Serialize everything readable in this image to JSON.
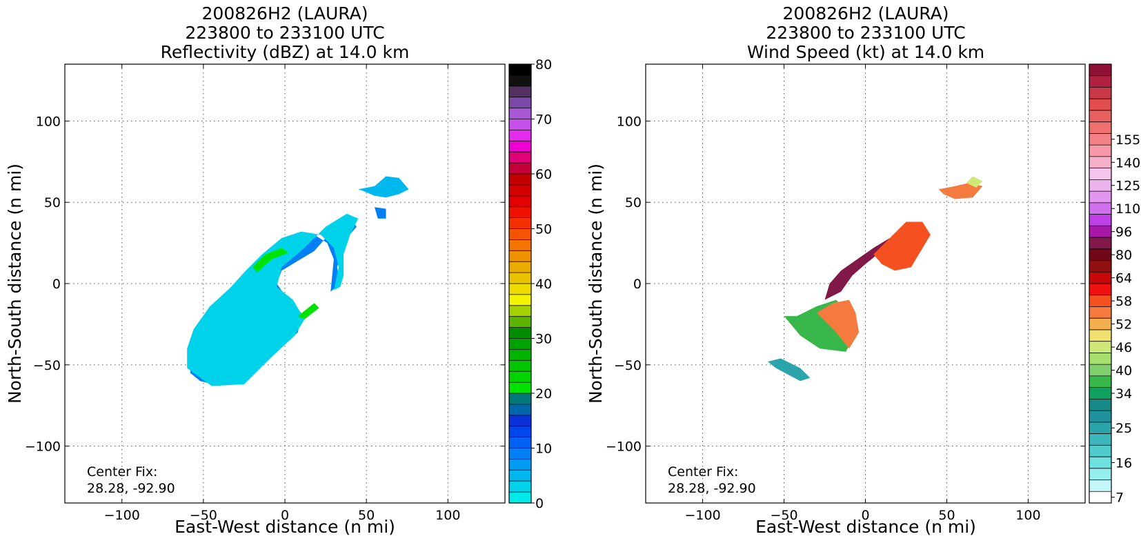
{
  "left_panel": {
    "title_line1": "200826H2 (LAURA)",
    "title_line2": "223800 to 233100 UTC",
    "title_line3": "Reflectivity (dBZ) at 14.0 km",
    "xlabel": "East-West distance (n mi)",
    "ylabel": "North-South distance (n mi)",
    "center_fix_label": "Center Fix:",
    "center_fix_value": "28.28, -92.90"
  },
  "right_panel": {
    "title_line1": "200826H2 (LAURA)",
    "title_line2": "223800 to 233100 UTC",
    "title_line3": "Wind Speed (kt) at 14.0 km",
    "xlabel": "East-West distance (n mi)",
    "ylabel": "North-South distance (n mi)",
    "center_fix_label": "Center Fix:",
    "center_fix_value": "28.28, -92.90"
  },
  "chart_data": [
    {
      "type": "heatmap",
      "title": "200826H2 (LAURA) 223800 to 233100 UTC Reflectivity (dBZ) at 14.0 km",
      "xlabel": "East-West distance (n mi)",
      "ylabel": "North-South distance (n mi)",
      "xlim": [
        -135,
        135
      ],
      "ylim": [
        -135,
        135
      ],
      "xticks": [
        -100,
        -50,
        0,
        50,
        100
      ],
      "yticks": [
        -100,
        -50,
        0,
        50,
        100
      ],
      "xtick_labels": [
        "−100",
        "−50",
        "0",
        "50",
        "100"
      ],
      "ytick_labels": [
        "−100",
        "−50",
        "0",
        "50",
        "100"
      ],
      "grid": true,
      "colorbar": {
        "min": 0,
        "max": 80,
        "tick_values": [
          0,
          10,
          20,
          30,
          40,
          50,
          60,
          70,
          80
        ],
        "tick_labels": [
          "0",
          "10",
          "20",
          "30",
          "40",
          "50",
          "60",
          "70",
          "80"
        ],
        "colors": [
          "#00eaea",
          "#00d2ea",
          "#00b8ee",
          "#009cf2",
          "#0080f4",
          "#0062f4",
          "#0046ee",
          "#0a30d8",
          "#0066aa",
          "#007a78",
          "#00e200",
          "#00d400",
          "#00c400",
          "#00b400",
          "#00a200",
          "#008e00",
          "#5cb400",
          "#a4d200",
          "#f4f400",
          "#eedc00",
          "#e8c400",
          "#eaac00",
          "#f09200",
          "#f47400",
          "#f45400",
          "#f43000",
          "#f01000",
          "#e40000",
          "#d40000",
          "#c40000",
          "#c4003a",
          "#e00078",
          "#ee00d0",
          "#e42cee",
          "#c850ea",
          "#a858d4",
          "#7c48a8",
          "#533262",
          "#101010",
          "#000000"
        ]
      },
      "regions": [
        {
          "name": "main-band",
          "value": 8,
          "points": [
            [
              -58,
              -55
            ],
            [
              -52,
              -60
            ],
            [
              -40,
              -63
            ],
            [
              -28,
              -58
            ],
            [
              -15,
              -48
            ],
            [
              -2,
              -38
            ],
            [
              8,
              -30
            ],
            [
              10,
              -18
            ],
            [
              2,
              -10
            ],
            [
              -5,
              0
            ],
            [
              -2,
              8
            ],
            [
              8,
              14
            ],
            [
              18,
              20
            ],
            [
              25,
              28
            ],
            [
              30,
              36
            ],
            [
              40,
              40
            ],
            [
              44,
              35
            ],
            [
              38,
              28
            ],
            [
              35,
              20
            ],
            [
              32,
              10
            ],
            [
              34,
              0
            ],
            [
              28,
              -5
            ],
            [
              30,
              15
            ],
            [
              26,
              25
            ],
            [
              18,
              30
            ],
            [
              8,
              28
            ],
            [
              -4,
              22
            ],
            [
              -14,
              14
            ],
            [
              -20,
              5
            ],
            [
              -28,
              -2
            ],
            [
              -38,
              -10
            ],
            [
              -48,
              -20
            ],
            [
              -55,
              -30
            ],
            [
              -58,
              -40
            ]
          ]
        },
        {
          "name": "outer-band",
          "value": 3,
          "points": [
            [
              -60,
              -52
            ],
            [
              -45,
              -63
            ],
            [
              -25,
              -62
            ],
            [
              -8,
              -45
            ],
            [
              6,
              -32
            ],
            [
              12,
              -22
            ],
            [
              5,
              -10
            ],
            [
              -5,
              -2
            ],
            [
              -2,
              10
            ],
            [
              12,
              22
            ],
            [
              25,
              35
            ],
            [
              38,
              43
            ],
            [
              45,
              40
            ],
            [
              40,
              30
            ],
            [
              36,
              18
            ],
            [
              36,
              5
            ],
            [
              34,
              -2
            ],
            [
              30,
              -4
            ],
            [
              33,
              10
            ],
            [
              30,
              22
            ],
            [
              22,
              30
            ],
            [
              10,
              32
            ],
            [
              -2,
              28
            ],
            [
              -14,
              18
            ],
            [
              -24,
              8
            ],
            [
              -34,
              -3
            ],
            [
              -46,
              -14
            ],
            [
              -56,
              -28
            ],
            [
              -60,
              -40
            ]
          ]
        },
        {
          "name": "ne-cell",
          "value": 4,
          "points": [
            [
              45,
              58
            ],
            [
              55,
              60
            ],
            [
              62,
              66
            ],
            [
              70,
              65
            ],
            [
              76,
              58
            ],
            [
              70,
              55
            ],
            [
              62,
              53
            ],
            [
              55,
              54
            ],
            [
              48,
              57
            ]
          ]
        },
        {
          "name": "ne-spot",
          "value": 8,
          "points": [
            [
              55,
              47
            ],
            [
              62,
              46
            ],
            [
              62,
              40
            ],
            [
              57,
              40
            ]
          ]
        },
        {
          "name": "green-streak",
          "value": 20,
          "points": [
            [
              -20,
              10
            ],
            [
              -12,
              18
            ],
            [
              -2,
              22
            ],
            [
              2,
              19
            ],
            [
              -8,
              15
            ],
            [
              -17,
              7
            ]
          ]
        },
        {
          "name": "green-spot",
          "value": 20,
          "points": [
            [
              8,
              -20
            ],
            [
              18,
              -12
            ],
            [
              21,
              -15
            ],
            [
              12,
              -22
            ]
          ]
        }
      ]
    },
    {
      "type": "heatmap",
      "title": "200826H2 (LAURA) 223800 to 233100 UTC Wind Speed (kt) at 14.0 km",
      "xlabel": "East-West distance (n mi)",
      "ylabel": "North-South distance (n mi)",
      "xlim": [
        -135,
        135
      ],
      "ylim": [
        -135,
        135
      ],
      "xticks": [
        -100,
        -50,
        0,
        50,
        100
      ],
      "yticks": [
        -100,
        -50,
        0,
        50,
        100
      ],
      "xtick_labels": [
        "−100",
        "−50",
        "0",
        "50",
        "100"
      ],
      "ytick_labels": [
        "−100",
        "−50",
        "0",
        "50",
        "100"
      ],
      "grid": true,
      "colorbar": {
        "tick_labels": [
          "7",
          "16",
          "25",
          "34",
          "40",
          "46",
          "52",
          "58",
          "64",
          "80",
          "96",
          "110",
          "125",
          "140",
          "155"
        ],
        "tick_index": [
          0,
          3,
          6,
          9,
          11,
          13,
          15,
          17,
          19,
          21,
          23,
          25,
          27,
          29,
          31
        ],
        "colors": [
          "#ffffff",
          "#c4f8f8",
          "#96eeee",
          "#6ee0e0",
          "#50cccc",
          "#3cb8bc",
          "#2ca4ac",
          "#20929e",
          "#168a86",
          "#10a060",
          "#38b84a",
          "#80d070",
          "#a8e070",
          "#d0e878",
          "#f0e070",
          "#f4b050",
          "#f47a40",
          "#f45020",
          "#f01010",
          "#c80808",
          "#901010",
          "#700818",
          "#801848",
          "#a818a8",
          "#c040e8",
          "#d070ec",
          "#e098ee",
          "#ecb4ee",
          "#f4c4ea",
          "#f4b0c8",
          "#f898a8",
          "#f48088",
          "#f07070",
          "#e86060",
          "#e04c50",
          "#c83848",
          "#b02040",
          "#901038"
        ]
      },
      "regions": [
        {
          "name": "sw-segment",
          "value": 24,
          "points": [
            [
              -60,
              -48
            ],
            [
              -55,
              -52
            ],
            [
              -40,
              -60
            ],
            [
              -34,
              -58
            ],
            [
              -40,
              -52
            ],
            [
              -52,
              -46
            ]
          ]
        },
        {
          "name": "sw-band",
          "value": 38,
          "points": [
            [
              -50,
              -20
            ],
            [
              -40,
              -32
            ],
            [
              -28,
              -40
            ],
            [
              -12,
              -42
            ],
            [
              -6,
              -30
            ],
            [
              -10,
              -18
            ],
            [
              -18,
              -10
            ],
            [
              -30,
              -14
            ],
            [
              -42,
              -20
            ]
          ]
        },
        {
          "name": "core-red",
          "value": 56,
          "points": [
            [
              -30,
              -18
            ],
            [
              -18,
              -30
            ],
            [
              -10,
              -40
            ],
            [
              -4,
              -30
            ],
            [
              -6,
              -18
            ],
            [
              -10,
              -10
            ],
            [
              -20,
              -12
            ]
          ]
        },
        {
          "name": "purple-arc",
          "value": 84,
          "points": [
            [
              -25,
              -10
            ],
            [
              -22,
              0
            ],
            [
              -15,
              8
            ],
            [
              -5,
              15
            ],
            [
              5,
              22
            ],
            [
              15,
              28
            ],
            [
              10,
              20
            ],
            [
              0,
              12
            ],
            [
              -8,
              5
            ],
            [
              -15,
              -5
            ]
          ]
        },
        {
          "name": "ne-red",
          "value": 58,
          "points": [
            [
              5,
              18
            ],
            [
              15,
              28
            ],
            [
              25,
              38
            ],
            [
              35,
              38
            ],
            [
              40,
              30
            ],
            [
              34,
              20
            ],
            [
              28,
              10
            ],
            [
              18,
              8
            ],
            [
              10,
              12
            ]
          ]
        },
        {
          "name": "far-ne",
          "value": 56,
          "points": [
            [
              45,
              58
            ],
            [
              55,
              60
            ],
            [
              64,
              62
            ],
            [
              72,
              60
            ],
            [
              66,
              53
            ],
            [
              55,
              52
            ],
            [
              48,
              55
            ]
          ]
        },
        {
          "name": "far-ne-orange",
          "value": 46,
          "points": [
            [
              62,
              62
            ],
            [
              66,
              66
            ],
            [
              72,
              63
            ],
            [
              68,
              59
            ]
          ]
        }
      ]
    }
  ]
}
